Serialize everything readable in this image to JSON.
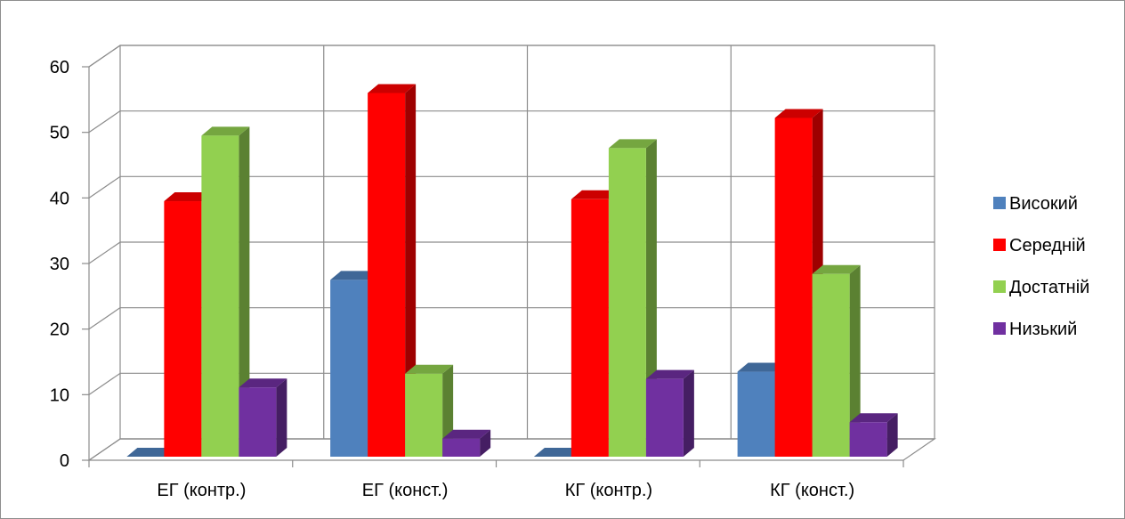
{
  "chart_data": {
    "type": "bar",
    "categories": [
      "ЕГ (контр.)",
      "ЕГ (конст.)",
      "КГ (контр.)",
      "КГ (конст.)"
    ],
    "series": [
      {
        "name": "Високий",
        "values": [
          0,
          27.5,
          0,
          13.5
        ],
        "color": "#4f81bd"
      },
      {
        "name": "Середній",
        "values": [
          39.5,
          56,
          39.8,
          52.2
        ],
        "color": "#ff0000"
      },
      {
        "name": "Достатній",
        "values": [
          49.5,
          13.2,
          47.6,
          28.4
        ],
        "color": "#92d050"
      },
      {
        "name": "Низький",
        "values": [
          11.1,
          3.3,
          12.4,
          5.8
        ],
        "color": "#7030a0"
      }
    ],
    "yticks": [
      "0",
      "10",
      "20",
      "30",
      "40",
      "50",
      "60"
    ],
    "ylim": [
      0,
      60
    ],
    "title": "",
    "xlabel": "",
    "ylabel": "",
    "grid": true,
    "legend_position": "right",
    "style": "3d-clustered-column"
  }
}
